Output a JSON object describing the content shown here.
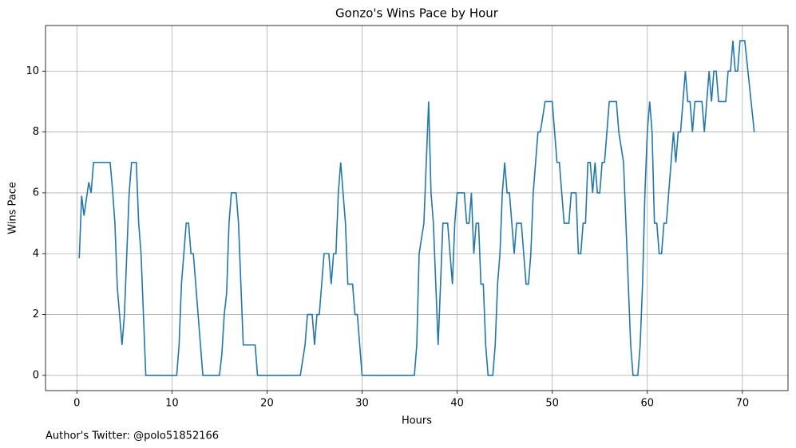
{
  "chart_data": {
    "type": "line",
    "title": "Gonzo's Wins Pace by Hour",
    "x_label": "Hours",
    "y_label": "Wins Pace",
    "footnote": "Author's Twitter: @polo51852166",
    "xlim": [
      -3.3,
      74.8
    ],
    "ylim": [
      -0.5,
      11.5
    ],
    "xticks": [
      0,
      10,
      20,
      30,
      40,
      50,
      60,
      70
    ],
    "yticks": [
      0,
      2,
      4,
      6,
      8,
      10
    ],
    "grid": true,
    "series": [
      {
        "color": "#1f77b4",
        "x": [
          0.25,
          0.5,
          0.75,
          1.25,
          1.5,
          1.75,
          3.5,
          3.75,
          4.0,
          4.25,
          4.75,
          5.0,
          5.5,
          5.75,
          6.25,
          6.5,
          6.75,
          7.0,
          7.25,
          10.5,
          10.75,
          11,
          11.5,
          11.75,
          12,
          12.25,
          12.75,
          13,
          13.25,
          15,
          15.25,
          15.5,
          15.75,
          16,
          16.25,
          16.75,
          17,
          17.5,
          18.75,
          19,
          23.5,
          24,
          24.25,
          24.75,
          25,
          25.25,
          25.5,
          25.75,
          26,
          26.5,
          26.75,
          27,
          27.25,
          27.5,
          27.75,
          28,
          28.25,
          28.5,
          29,
          29.25,
          29.5,
          29.75,
          30,
          35.5,
          35.75,
          36,
          36.5,
          36.75,
          37,
          37.25,
          37.5,
          37.75,
          38,
          38.25,
          38.5,
          39,
          39.5,
          39.75,
          40,
          40.75,
          41,
          41.25,
          41.5,
          41.75,
          42,
          42.25,
          42.5,
          42.75,
          43,
          43.25,
          43.75,
          44,
          44.25,
          44.5,
          44.75,
          45,
          45.25,
          45.5,
          46,
          46.25,
          46.75,
          47,
          47.25,
          47.5,
          47.75,
          48,
          48.5,
          48.75,
          49.25,
          50,
          50.5,
          50.75,
          51,
          51.25,
          51.75,
          52,
          52.5,
          52.75,
          53,
          53.25,
          53.5,
          53.75,
          54,
          54.25,
          54.5,
          54.75,
          55,
          55.25,
          55.5,
          56,
          56.75,
          57,
          57.5,
          57.75,
          58,
          58.25,
          58.5,
          59,
          59.25,
          59.5,
          59.75,
          60,
          60.25,
          60.5,
          60.75,
          61,
          61.25,
          61.5,
          61.75,
          62,
          62.5,
          62.75,
          63,
          63.25,
          63.5,
          64,
          64.25,
          64.5,
          64.75,
          65,
          65.75,
          66,
          66.25,
          66.5,
          66.75,
          67,
          67.25,
          67.5,
          68.25,
          68.5,
          68.75,
          69,
          69.25,
          69.5,
          69.75,
          70.25,
          71.25
        ],
        "values": [
          3.85,
          5.9,
          5.25,
          6.35,
          6.0,
          7,
          7,
          6.1,
          5,
          2.9,
          1,
          2,
          6,
          7,
          7,
          5,
          4,
          2,
          0,
          0,
          1,
          3,
          5,
          5,
          4,
          4,
          2,
          1,
          0,
          0,
          0.7,
          2,
          2.7,
          5,
          6,
          6,
          5,
          1,
          1,
          0,
          0,
          1,
          2,
          2,
          1,
          2,
          2,
          3,
          4,
          4,
          3,
          4,
          4,
          6,
          7,
          6,
          5,
          3,
          3,
          2,
          2,
          1,
          0,
          0,
          1,
          4,
          5,
          7,
          9,
          6,
          5,
          3,
          1,
          3,
          5,
          5,
          3,
          5,
          6,
          6,
          5,
          5,
          6,
          4,
          5,
          5,
          3,
          3,
          1,
          0,
          0,
          1,
          3,
          4,
          6,
          7,
          6,
          6,
          4,
          5,
          5,
          4,
          3,
          3,
          4,
          6,
          8,
          8,
          9,
          9,
          7,
          7,
          6,
          5,
          5,
          6,
          6,
          4,
          4,
          5,
          5,
          7,
          7,
          6,
          7,
          6,
          6,
          7,
          7,
          9,
          9,
          8,
          7,
          5,
          3,
          1,
          0,
          0,
          1,
          3,
          6,
          8,
          9,
          8,
          5,
          5,
          4,
          4,
          5,
          5,
          7,
          8,
          7,
          8,
          8,
          10,
          9,
          9,
          8,
          9,
          9,
          8,
          9,
          10,
          9,
          10,
          10,
          9,
          9,
          10,
          10,
          11,
          10,
          10,
          11,
          11,
          8
        ]
      }
    ]
  }
}
